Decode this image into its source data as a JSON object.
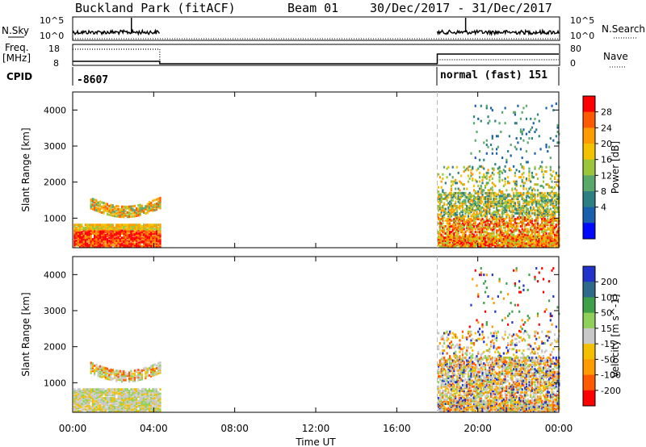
{
  "header": {
    "station": "Buckland Park (fitACF)",
    "beam": "Beam 01",
    "dates": "30/Dec/2017 - 31/Dec/2017"
  },
  "small_panels": {
    "nsky_label": "N.Sky",
    "nsearch_label": "N.Search",
    "nsky_ticks": [
      "10^5",
      "10^0"
    ],
    "nsearch_ticks": [
      "10^5",
      "10^0"
    ],
    "freq_label": "Freq.",
    "freq_unit": "[MHz]",
    "freq_ticks": [
      "18",
      "8"
    ],
    "nave_label": "Nave",
    "nave_ticks": [
      "80",
      "0"
    ],
    "cpid_label": "CPID",
    "cpid_value_left": "-8607",
    "cpid_value_right": "normal (fast) 151"
  },
  "chart_data": [
    {
      "type": "heatmap",
      "name": "power",
      "ylabel": "Slant Range [km]",
      "yticks": [
        "4000",
        "3000",
        "2000",
        "1000"
      ],
      "ylim": [
        180,
        4500
      ],
      "xticks": [
        "00:00",
        "04:00",
        "08:00",
        "12:00",
        "16:00",
        "20:00",
        "00:00"
      ],
      "xlim": [
        0,
        24
      ],
      "colorbar_label": "Power [dB]",
      "colorbar_ticks": [
        "28",
        "24",
        "20",
        "16",
        "12",
        "8",
        "4"
      ],
      "colorbar_colors": [
        "#ff0000",
        "#ff5a00",
        "#ff9a00",
        "#f2c200",
        "#9bc63c",
        "#5aa86a",
        "#2e7f84",
        "#1a5fae",
        "#0008ff"
      ],
      "data_intervals_hours": [
        [
          0,
          4.3
        ],
        [
          18,
          24
        ]
      ],
      "dashed_marker_hour": 18
    },
    {
      "type": "heatmap",
      "name": "velocity",
      "ylabel": "Slant Range [km]",
      "yticks": [
        "4000",
        "3000",
        "2000",
        "1000"
      ],
      "ylim": [
        180,
        4500
      ],
      "xticks": [
        "00:00",
        "04:00",
        "08:00",
        "12:00",
        "16:00",
        "20:00",
        "00:00"
      ],
      "xlim": [
        0,
        24
      ],
      "xlabel": "Time UT",
      "colorbar_label": "Velocity [m s^-1]",
      "colorbar_ticks": [
        "200",
        "100",
        "50",
        "15",
        "-15",
        "-50",
        "-100",
        "-200"
      ],
      "colorbar_colors": [
        "#2233cc",
        "#2f6a8a",
        "#3fa04a",
        "#8fd05a",
        "#c8c8c8",
        "#f2c000",
        "#ff9a00",
        "#ff5a00",
        "#ff0000"
      ],
      "data_intervals_hours": [
        [
          0,
          4.3
        ],
        [
          18,
          24
        ]
      ],
      "dashed_marker_hour": 18
    }
  ]
}
